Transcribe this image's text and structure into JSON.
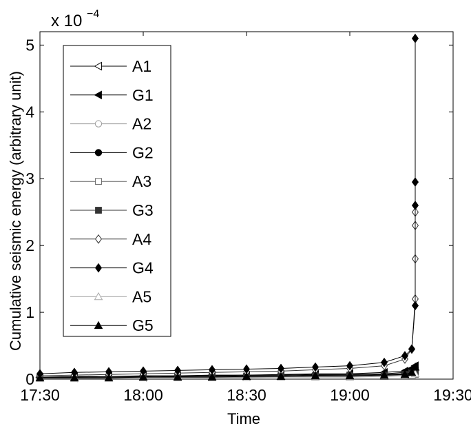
{
  "chart_data": {
    "type": "line",
    "ylabel": "Cumulative seismic energy (arbitrary unit)",
    "xlabel": "Time",
    "y_multiplier_label": "x 10",
    "y_multiplier_exponent": "−4",
    "xlim": [
      "17:30",
      "19:30"
    ],
    "ylim": [
      0,
      5.2
    ],
    "x_ticks": [
      "17:30",
      "18:00",
      "18:30",
      "19:00",
      "19:30"
    ],
    "y_ticks": [
      "0",
      "1",
      "2",
      "3",
      "4",
      "5"
    ],
    "grid": false,
    "legend_position": "top-left",
    "series": [
      {
        "name": "A1",
        "marker": "triangle-left",
        "fill": "open",
        "color": "#000000",
        "x": [
          "17:30",
          "17:40",
          "17:50",
          "18:00",
          "18:10",
          "18:20",
          "18:30",
          "18:40",
          "18:50",
          "19:00",
          "19:10",
          "19:16",
          "19:18",
          "19:19"
        ],
        "y": [
          0.02,
          0.02,
          0.03,
          0.03,
          0.04,
          0.04,
          0.05,
          0.05,
          0.06,
          0.06,
          0.07,
          0.08,
          0.1,
          0.12
        ]
      },
      {
        "name": "G1",
        "marker": "triangle-left",
        "fill": "solid",
        "color": "#000000",
        "x": [
          "17:30",
          "17:40",
          "17:50",
          "18:00",
          "18:10",
          "18:20",
          "18:30",
          "18:40",
          "18:50",
          "19:00",
          "19:10",
          "19:16",
          "19:18",
          "19:19"
        ],
        "y": [
          0.03,
          0.04,
          0.04,
          0.05,
          0.05,
          0.06,
          0.06,
          0.07,
          0.08,
          0.08,
          0.1,
          0.12,
          0.16,
          0.2
        ]
      },
      {
        "name": "A2",
        "marker": "circle",
        "fill": "open",
        "color": "#999999",
        "x": [
          "17:30",
          "17:40",
          "17:50",
          "18:00",
          "18:10",
          "18:20",
          "18:30",
          "18:40",
          "18:50",
          "19:00",
          "19:10",
          "19:16",
          "19:18",
          "19:19"
        ],
        "y": [
          0.02,
          0.02,
          0.02,
          0.03,
          0.03,
          0.03,
          0.04,
          0.04,
          0.04,
          0.05,
          0.05,
          0.06,
          0.07,
          0.09
        ]
      },
      {
        "name": "G2",
        "marker": "circle",
        "fill": "solid",
        "color": "#000000",
        "x": [
          "17:30",
          "17:40",
          "17:50",
          "18:00",
          "18:10",
          "18:20",
          "18:30",
          "18:40",
          "18:50",
          "19:00",
          "19:10",
          "19:16",
          "19:18",
          "19:19"
        ],
        "y": [
          0.03,
          0.03,
          0.04,
          0.04,
          0.05,
          0.05,
          0.06,
          0.06,
          0.07,
          0.07,
          0.08,
          0.1,
          0.12,
          0.15
        ]
      },
      {
        "name": "A3",
        "marker": "square",
        "fill": "open",
        "color": "#666666",
        "x": [
          "17:30",
          "17:40",
          "17:50",
          "18:00",
          "18:10",
          "18:20",
          "18:30",
          "18:40",
          "18:50",
          "19:00",
          "19:10",
          "19:16",
          "19:18",
          "19:19"
        ],
        "y": [
          0.01,
          0.01,
          0.02,
          0.02,
          0.02,
          0.03,
          0.03,
          0.03,
          0.04,
          0.04,
          0.05,
          0.05,
          0.06,
          0.07
        ]
      },
      {
        "name": "G3",
        "marker": "square",
        "fill": "solid",
        "color": "#333333",
        "x": [
          "17:30",
          "17:40",
          "17:50",
          "18:00",
          "18:10",
          "18:20",
          "18:30",
          "18:40",
          "18:50",
          "19:00",
          "19:10",
          "19:16",
          "19:18",
          "19:19"
        ],
        "y": [
          0.02,
          0.02,
          0.03,
          0.03,
          0.03,
          0.04,
          0.04,
          0.05,
          0.05,
          0.06,
          0.06,
          0.07,
          0.09,
          0.11
        ]
      },
      {
        "name": "A4",
        "marker": "diamond",
        "fill": "open",
        "color": "#333333",
        "x": [
          "17:30",
          "17:40",
          "17:50",
          "18:00",
          "18:10",
          "18:20",
          "18:30",
          "18:40",
          "18:50",
          "19:00",
          "19:10",
          "19:16",
          "19:18",
          "19:19",
          "19:19",
          "19:19",
          "19:19"
        ],
        "y": [
          0.05,
          0.06,
          0.07,
          0.08,
          0.09,
          0.1,
          0.11,
          0.12,
          0.14,
          0.16,
          0.2,
          0.3,
          0.45,
          1.2,
          1.8,
          2.3,
          2.5
        ]
      },
      {
        "name": "G4",
        "marker": "diamond",
        "fill": "solid",
        "color": "#000000",
        "x": [
          "17:30",
          "17:40",
          "17:50",
          "18:00",
          "18:10",
          "18:20",
          "18:30",
          "18:40",
          "18:50",
          "19:00",
          "19:10",
          "19:16",
          "19:18",
          "19:19",
          "19:19",
          "19:19",
          "19:19"
        ],
        "y": [
          0.08,
          0.1,
          0.11,
          0.12,
          0.13,
          0.14,
          0.15,
          0.16,
          0.18,
          0.2,
          0.25,
          0.35,
          0.45,
          1.1,
          2.6,
          2.95,
          5.1
        ]
      },
      {
        "name": "A5",
        "marker": "triangle-up",
        "fill": "open",
        "color": "#aaaaaa",
        "x": [
          "17:30",
          "17:40",
          "17:50",
          "18:00",
          "18:10",
          "18:20",
          "18:30",
          "18:40",
          "18:50",
          "19:00",
          "19:10",
          "19:16",
          "19:18",
          "19:19"
        ],
        "y": [
          0.01,
          0.01,
          0.01,
          0.02,
          0.02,
          0.02,
          0.02,
          0.03,
          0.03,
          0.03,
          0.04,
          0.05,
          0.06,
          0.08
        ]
      },
      {
        "name": "G5",
        "marker": "triangle-up",
        "fill": "solid",
        "color": "#000000",
        "x": [
          "17:30",
          "17:40",
          "17:50",
          "18:00",
          "18:10",
          "18:20",
          "18:30",
          "18:40",
          "18:50",
          "19:00",
          "19:10",
          "19:16",
          "19:18",
          "19:19"
        ],
        "y": [
          0.02,
          0.02,
          0.02,
          0.03,
          0.03,
          0.03,
          0.04,
          0.04,
          0.05,
          0.05,
          0.06,
          0.07,
          0.1,
          0.18
        ]
      }
    ]
  }
}
